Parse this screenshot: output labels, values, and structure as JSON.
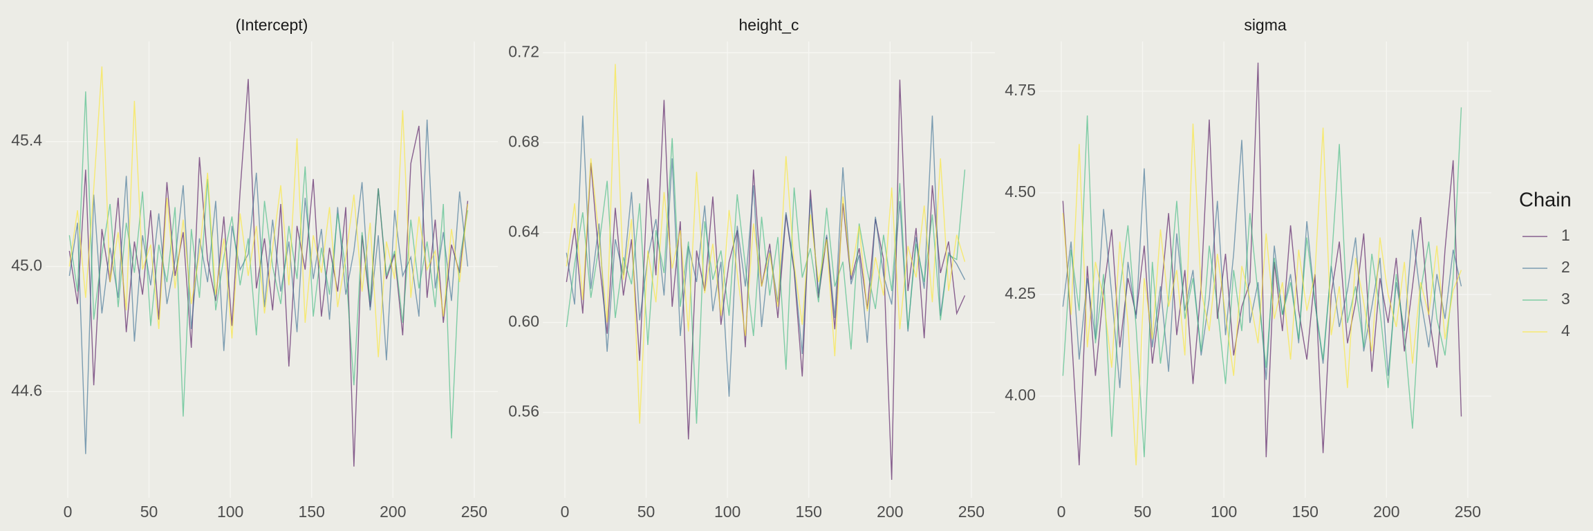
{
  "chart_data": [
    {
      "type": "line",
      "title": "(Intercept)",
      "x": [
        1,
        6,
        11,
        16,
        21,
        26,
        31,
        36,
        41,
        46,
        51,
        56,
        61,
        66,
        71,
        76,
        81,
        86,
        91,
        96,
        101,
        106,
        111,
        116,
        121,
        126,
        131,
        136,
        141,
        146,
        151,
        156,
        161,
        166,
        171,
        176,
        181,
        186,
        191,
        196,
        201,
        206,
        211,
        216,
        221,
        226,
        231,
        236,
        241,
        246
      ],
      "xlim": [
        -13.6,
        264.5
      ],
      "xticks": [
        0,
        50,
        100,
        150,
        200,
        250
      ],
      "ylim": [
        44.26,
        45.72
      ],
      "yticks": [
        44.6,
        {
          "value": 45,
          "label": "45.0"
        },
        45.4
      ],
      "grid": true,
      "series": [
        {
          "name": "1",
          "color": "#440154",
          "values": [
            45.05,
            44.88,
            45.31,
            44.62,
            45.12,
            44.95,
            45.22,
            44.79,
            45.08,
            44.91,
            45.18,
            44.83,
            45.27,
            44.97,
            45.11,
            44.74,
            45.35,
            45.02,
            44.89,
            45.16,
            44.81,
            45.24,
            45.6,
            44.93,
            45.09,
            44.86,
            45.2,
            44.68,
            45.13,
            44.99,
            45.28,
            44.84,
            45.06,
            44.92,
            45.19,
            44.36,
            45.1,
            44.87,
            45.25,
            44.96,
            45.04,
            44.78,
            45.33,
            45.45,
            44.9,
            45.15,
            44.82,
            45.07,
            44.98,
            45.21
          ]
        },
        {
          "name": "2",
          "color": "#31688e",
          "values": [
            44.97,
            45.14,
            44.4,
            45.23,
            44.85,
            45.06,
            44.9,
            45.29,
            44.76,
            45.1,
            44.94,
            45.17,
            44.88,
            45.02,
            45.26,
            44.8,
            45.09,
            44.95,
            45.21,
            44.73,
            45.13,
            44.99,
            45.04,
            45.3,
            44.87,
            45.15,
            44.92,
            45.08,
            44.79,
            45.22,
            44.96,
            45.12,
            44.83,
            45.19,
            44.91,
            45.05,
            45.27,
            44.86,
            45.1,
            44.7,
            45.18,
            44.97,
            45.03,
            44.84,
            45.47,
            44.93,
            45.11,
            44.89,
            45.24,
            45.0
          ]
        },
        {
          "name": "3",
          "color": "#35b779",
          "values": [
            45.1,
            44.92,
            45.56,
            44.83,
            45.04,
            45.2,
            44.87,
            45.14,
            44.98,
            45.24,
            44.81,
            45.07,
            44.95,
            45.19,
            44.52,
            45.12,
            44.9,
            45.28,
            44.86,
            45.03,
            45.16,
            44.94,
            45.09,
            44.78,
            45.21,
            45.0,
            44.88,
            45.13,
            44.96,
            45.32,
            44.84,
            45.06,
            44.91,
            45.17,
            44.99,
            44.62,
            45.11,
            44.89,
            45.25,
            44.97,
            45.05,
            44.82,
            45.15,
            44.93,
            45.08,
            44.87,
            45.2,
            44.45,
            45.02,
            45.18
          ]
        },
        {
          "name": "4",
          "color": "#fde725",
          "values": [
            45.0,
            45.18,
            44.9,
            45.25,
            45.64,
            44.95,
            45.11,
            44.86,
            45.53,
            44.99,
            45.07,
            44.8,
            45.22,
            44.93,
            45.15,
            44.88,
            45.04,
            45.3,
            44.91,
            45.09,
            44.77,
            45.17,
            44.97,
            45.13,
            44.85,
            45.06,
            45.26,
            44.94,
            45.41,
            44.82,
            45.1,
            44.98,
            45.19,
            44.87,
            45.03,
            45.23,
            44.92,
            45.14,
            44.71,
            45.08,
            44.96,
            45.5,
            44.9,
            45.16,
            44.99,
            45.05,
            44.84,
            45.12,
            44.95,
            45.2
          ]
        }
      ]
    },
    {
      "type": "line",
      "title": "height_c",
      "x": [
        1,
        6,
        11,
        16,
        21,
        26,
        31,
        36,
        41,
        46,
        51,
        56,
        61,
        66,
        71,
        76,
        81,
        86,
        91,
        96,
        101,
        106,
        111,
        116,
        121,
        126,
        131,
        136,
        141,
        146,
        151,
        156,
        161,
        166,
        171,
        176,
        181,
        186,
        191,
        196,
        201,
        206,
        211,
        216,
        221,
        226,
        231,
        236,
        241,
        246
      ],
      "xlim": [
        -13.6,
        264.5
      ],
      "xticks": [
        0,
        50,
        100,
        150,
        200,
        250
      ],
      "ylim": [
        0.522,
        0.725
      ],
      "yticks": [
        0.56,
        {
          "value": 0.6,
          "label": "0.60"
        },
        0.64,
        0.68,
        0.72
      ],
      "grid": true,
      "series": [
        {
          "name": "1",
          "color": "#440154",
          "values": [
            0.618,
            0.642,
            0.604,
            0.671,
            0.628,
            0.595,
            0.651,
            0.612,
            0.637,
            0.583,
            0.664,
            0.621,
            0.699,
            0.607,
            0.645,
            0.548,
            0.632,
            0.614,
            0.656,
            0.599,
            0.627,
            0.641,
            0.589,
            0.668,
            0.616,
            0.635,
            0.602,
            0.648,
            0.623,
            0.576,
            0.659,
            0.611,
            0.638,
            0.597,
            0.653,
            0.619,
            0.633,
            0.606,
            0.646,
            0.628,
            0.53,
            0.708,
            0.614,
            0.642,
            0.593,
            0.661,
            0.622,
            0.636,
            0.604,
            0.612
          ]
        },
        {
          "name": "2",
          "color": "#31688e",
          "values": [
            0.631,
            0.608,
            0.692,
            0.615,
            0.644,
            0.587,
            0.637,
            0.621,
            0.658,
            0.601,
            0.629,
            0.646,
            0.612,
            0.673,
            0.594,
            0.634,
            0.618,
            0.652,
            0.605,
            0.627,
            0.567,
            0.643,
            0.616,
            0.661,
            0.598,
            0.632,
            0.609,
            0.649,
            0.624,
            0.586,
            0.655,
            0.613,
            0.639,
            0.602,
            0.669,
            0.617,
            0.63,
            0.591,
            0.647,
            0.621,
            0.608,
            0.654,
            0.596,
            0.638,
            0.615,
            0.692,
            0.603,
            0.631,
            0.626,
            0.619
          ]
        },
        {
          "name": "3",
          "color": "#35b779",
          "values": [
            0.598,
            0.626,
            0.649,
            0.611,
            0.634,
            0.663,
            0.602,
            0.629,
            0.617,
            0.653,
            0.59,
            0.641,
            0.622,
            0.682,
            0.607,
            0.636,
            0.555,
            0.645,
            0.619,
            0.632,
            0.603,
            0.657,
            0.625,
            0.594,
            0.647,
            0.612,
            0.638,
            0.579,
            0.66,
            0.62,
            0.633,
            0.609,
            0.651,
            0.616,
            0.627,
            0.588,
            0.644,
            0.623,
            0.606,
            0.639,
            0.614,
            0.662,
            0.597,
            0.635,
            0.618,
            0.648,
            0.601,
            0.63,
            0.628,
            0.668
          ]
        },
        {
          "name": "4",
          "color": "#fde725",
          "values": [
            0.625,
            0.653,
            0.61,
            0.673,
            0.638,
            0.6,
            0.715,
            0.619,
            0.646,
            0.555,
            0.632,
            0.609,
            0.658,
            0.624,
            0.641,
            0.596,
            0.667,
            0.613,
            0.635,
            0.603,
            0.65,
            0.622,
            0.594,
            0.644,
            0.616,
            0.631,
            0.607,
            0.674,
            0.626,
            0.599,
            0.648,
            0.618,
            0.637,
            0.585,
            0.656,
            0.621,
            0.643,
            0.605,
            0.629,
            0.612,
            0.66,
            0.597,
            0.634,
            0.62,
            0.652,
            0.609,
            0.673,
            0.614,
            0.639,
            0.627
          ]
        }
      ]
    },
    {
      "type": "line",
      "title": "sigma",
      "x": [
        1,
        6,
        11,
        16,
        21,
        26,
        31,
        36,
        41,
        46,
        51,
        56,
        61,
        66,
        71,
        76,
        81,
        86,
        91,
        96,
        101,
        106,
        111,
        116,
        121,
        126,
        131,
        136,
        141,
        146,
        151,
        156,
        161,
        166,
        171,
        176,
        181,
        186,
        191,
        196,
        201,
        206,
        211,
        216,
        221,
        226,
        231,
        236,
        241,
        246
      ],
      "xlim": [
        -13.6,
        264.5
      ],
      "xticks": [
        0,
        50,
        100,
        150,
        200,
        250
      ],
      "ylim": [
        3.75,
        4.872
      ],
      "yticks": [
        {
          "value": 4,
          "label": "4.00"
        },
        4.25,
        {
          "value": 4.5,
          "label": "4.50"
        },
        4.75
      ],
      "grid": true,
      "legend_title": "Chain",
      "legend": "right",
      "series": [
        {
          "name": "1",
          "color": "#440154",
          "values": [
            4.48,
            4.17,
            3.83,
            4.32,
            4.05,
            4.26,
            4.41,
            4.12,
            4.29,
            4.2,
            4.37,
            4.08,
            4.24,
            4.45,
            4.15,
            4.31,
            4.03,
            4.27,
            4.68,
            4.19,
            4.35,
            4.1,
            4.22,
            4.28,
            4.82,
            3.85,
            4.33,
            4.16,
            4.42,
            4.21,
            4.09,
            4.3,
            3.86,
            4.25,
            4.38,
            4.13,
            4.23,
            4.4,
            4.06,
            4.29,
            4.18,
            4.34,
            4.11,
            4.27,
            4.44,
            4.2,
            4.07,
            4.36,
            4.58,
            3.95
          ]
        },
        {
          "name": "2",
          "color": "#31688e",
          "values": [
            4.22,
            4.38,
            4.09,
            4.29,
            4.14,
            4.46,
            4.25,
            4.02,
            4.33,
            4.19,
            4.56,
            4.12,
            4.27,
            4.06,
            4.4,
            4.21,
            4.31,
            4.1,
            4.24,
            4.48,
            4.15,
            4.35,
            4.63,
            4.18,
            4.28,
            4.04,
            4.37,
            4.2,
            4.3,
            4.13,
            4.43,
            4.23,
            4.08,
            4.32,
            4.17,
            4.26,
            4.39,
            4.11,
            4.22,
            4.34,
            4.05,
            4.28,
            4.16,
            4.41,
            4.24,
            4.12,
            4.3,
            4.19,
            4.36,
            4.27
          ]
        },
        {
          "name": "3",
          "color": "#35b779",
          "values": [
            4.05,
            4.36,
            4.21,
            4.69,
            4.13,
            4.3,
            3.9,
            4.26,
            4.42,
            4.17,
            3.85,
            4.33,
            4.08,
            4.24,
            4.48,
            4.19,
            4.29,
            4.11,
            4.37,
            4.22,
            4.03,
            4.31,
            4.16,
            4.45,
            4.25,
            4.07,
            4.34,
            4.2,
            4.28,
            4.14,
            4.39,
            4.23,
            4.09,
            4.32,
            4.62,
            4.18,
            4.27,
            4.12,
            4.35,
            4.21,
            4.02,
            4.3,
            4.15,
            3.92,
            4.26,
            4.38,
            4.19,
            4.1,
            4.29,
            4.71
          ]
        },
        {
          "name": "4",
          "color": "#fde725",
          "values": [
            4.45,
            4.2,
            4.62,
            4.12,
            4.33,
            4.24,
            4.07,
            4.38,
            4.18,
            3.83,
            4.29,
            4.14,
            4.41,
            4.22,
            4.31,
            4.1,
            4.67,
            4.26,
            4.16,
            4.35,
            4.2,
            4.05,
            4.32,
            4.24,
            4.13,
            4.4,
            4.19,
            4.28,
            4.09,
            4.36,
            4.21,
            4.3,
            4.66,
            4.15,
            4.27,
            4.02,
            4.34,
            4.23,
            4.11,
            4.39,
            4.25,
            4.17,
            4.33,
            4.08,
            4.28,
            4.2,
            4.37,
            4.14,
            4.26,
            4.31
          ]
        }
      ]
    }
  ]
}
